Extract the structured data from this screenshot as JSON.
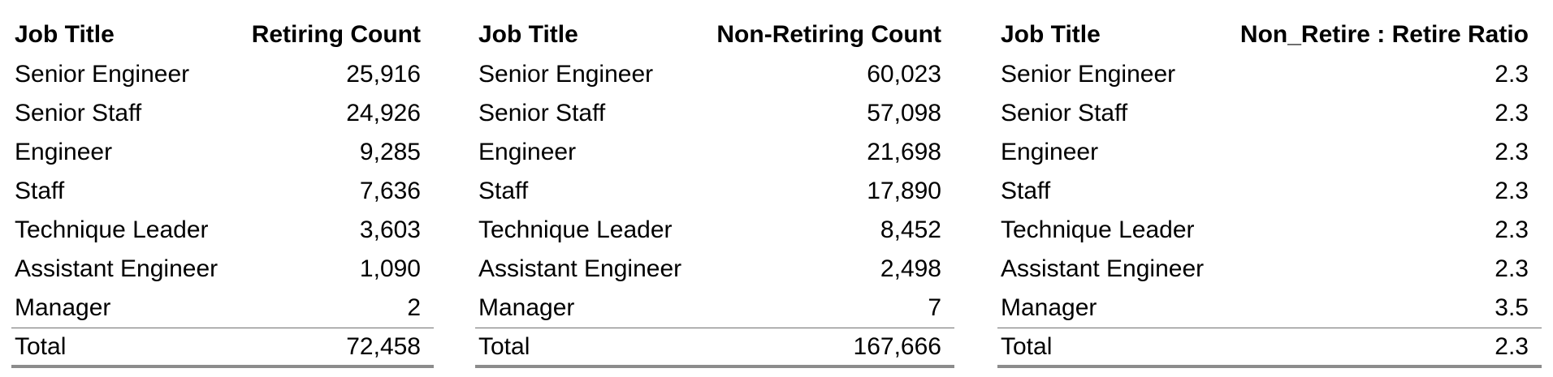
{
  "tables": [
    {
      "headers": [
        "Job Title",
        "Retiring Count"
      ],
      "rows": [
        [
          "Senior Engineer",
          "25,916"
        ],
        [
          "Senior Staff",
          "24,926"
        ],
        [
          "Engineer",
          "9,285"
        ],
        [
          "Staff",
          "7,636"
        ],
        [
          "Technique Leader",
          "3,603"
        ],
        [
          "Assistant Engineer",
          "1,090"
        ],
        [
          "Manager",
          "2"
        ]
      ],
      "total": [
        "Total",
        "72,458"
      ]
    },
    {
      "headers": [
        "Job Title",
        "Non-Retiring Count"
      ],
      "rows": [
        [
          "Senior Engineer",
          "60,023"
        ],
        [
          "Senior Staff",
          "57,098"
        ],
        [
          "Engineer",
          "21,698"
        ],
        [
          "Staff",
          "17,890"
        ],
        [
          "Technique Leader",
          "8,452"
        ],
        [
          "Assistant Engineer",
          "2,498"
        ],
        [
          "Manager",
          "7"
        ]
      ],
      "total": [
        "Total",
        "167,666"
      ]
    },
    {
      "headers": [
        "Job Title",
        "Non_Retire : Retire Ratio"
      ],
      "rows": [
        [
          "Senior Engineer",
          "2.3"
        ],
        [
          "Senior Staff",
          "2.3"
        ],
        [
          "Engineer",
          "2.3"
        ],
        [
          "Staff",
          "2.3"
        ],
        [
          "Technique Leader",
          "2.3"
        ],
        [
          "Assistant Engineer",
          "2.3"
        ],
        [
          "Manager",
          "3.5"
        ]
      ],
      "total": [
        "Total",
        "2.3"
      ]
    }
  ]
}
